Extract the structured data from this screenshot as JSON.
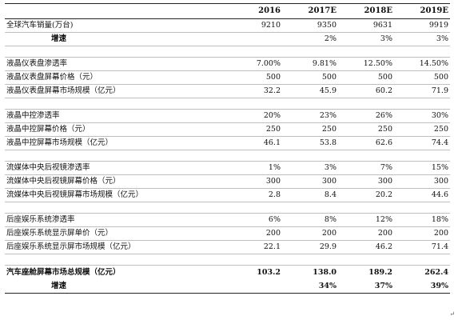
{
  "table": {
    "columns": [
      "",
      "2016",
      "2017E",
      "2018E",
      "2019E"
    ],
    "rows": [
      {
        "kind": "row",
        "label": "全球汽车销量(万台)",
        "values": [
          "9210",
          "9350",
          "9631",
          "9919"
        ]
      },
      {
        "kind": "row",
        "label": "增速",
        "indent": true,
        "bold": true,
        "values": [
          "",
          "2%",
          "3%",
          "3%"
        ]
      },
      {
        "kind": "blank"
      },
      {
        "kind": "row",
        "label": "液晶仪表盘渗透率",
        "values": [
          "7.00%",
          "9.81%",
          "12.50%",
          "14.50%"
        ]
      },
      {
        "kind": "row",
        "label": "液晶仪表盘屏幕价格（元）",
        "values": [
          "500",
          "500",
          "500",
          "500"
        ]
      },
      {
        "kind": "row",
        "label": "液晶仪表盘屏幕市场规模（亿元）",
        "values": [
          "32.2",
          "45.9",
          "60.2",
          "71.9"
        ]
      },
      {
        "kind": "blank"
      },
      {
        "kind": "row",
        "label": "液晶中控渗透率",
        "values": [
          "20%",
          "23%",
          "26%",
          "30%"
        ]
      },
      {
        "kind": "row",
        "label": "液晶中控屏幕价格（元）",
        "values": [
          "250",
          "250",
          "250",
          "250"
        ]
      },
      {
        "kind": "row",
        "label": "液晶中控屏幕市场规模（亿元）",
        "values": [
          "46.1",
          "53.8",
          "62.6",
          "74.4"
        ]
      },
      {
        "kind": "blank"
      },
      {
        "kind": "row",
        "label": "流媒体中央后视镜渗透率",
        "values": [
          "1%",
          "3%",
          "7%",
          "15%"
        ]
      },
      {
        "kind": "row",
        "label": "流媒体中央后视镜屏幕价格（元）",
        "values": [
          "300",
          "300",
          "300",
          "300"
        ]
      },
      {
        "kind": "row",
        "label": "流媒体中央后视镜屏幕市场规模（亿元）",
        "values": [
          "2.8",
          "8.4",
          "20.2",
          "44.6"
        ]
      },
      {
        "kind": "blank"
      },
      {
        "kind": "row",
        "label": "后座娱乐系统渗透率",
        "values": [
          "6%",
          "8%",
          "12%",
          "18%"
        ]
      },
      {
        "kind": "row",
        "label": "后座娱乐系统显示屏单价（元）",
        "values": [
          "200",
          "200",
          "200",
          "200"
        ]
      },
      {
        "kind": "row",
        "label": "后座娱乐系统显示屏市场规模（亿元）",
        "values": [
          "22.1",
          "29.9",
          "46.2",
          "71.4"
        ]
      },
      {
        "kind": "blank"
      },
      {
        "kind": "total",
        "label": "汽车座舱屏幕市场总规模（亿元）",
        "bold": true,
        "values": [
          "103.2",
          "138.0",
          "189.2",
          "262.4"
        ]
      },
      {
        "kind": "total-growth",
        "label": "增速",
        "indent": true,
        "bold": true,
        "values": [
          "",
          "34%",
          "37%",
          "39%"
        ]
      }
    ]
  },
  "return_mark": "↵"
}
